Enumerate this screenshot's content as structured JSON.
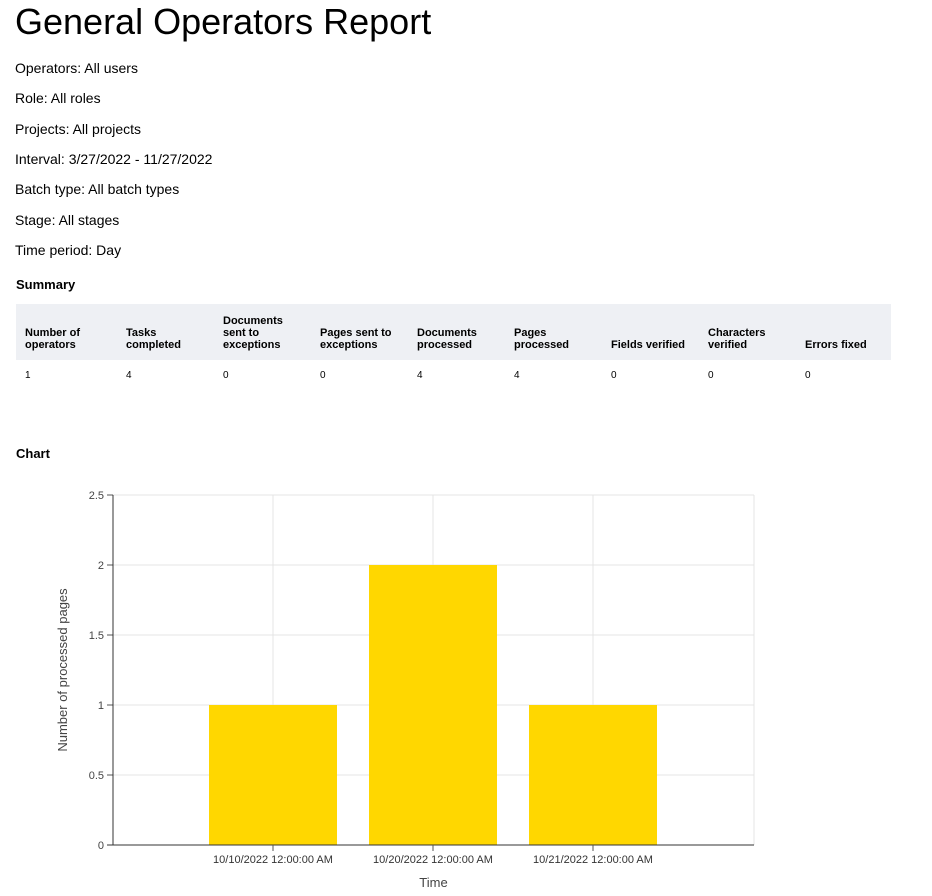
{
  "report": {
    "title": "General Operators Report",
    "filters": [
      "Operators: All users",
      "Role: All roles",
      "Projects: All projects",
      "Interval: 3/27/2022 - 11/27/2022",
      "Batch type: All batch types",
      "Stage: All stages",
      "Time period: Day"
    ]
  },
  "summary": {
    "heading": "Summary",
    "columns": [
      [
        "Number of",
        "operators"
      ],
      [
        "Tasks",
        "completed"
      ],
      [
        "Documents",
        "sent to",
        "exceptions"
      ],
      [
        "Pages sent to",
        "exceptions"
      ],
      [
        "Documents",
        "processed"
      ],
      [
        "Pages",
        "processed"
      ],
      [
        "Fields verified"
      ],
      [
        "Characters",
        "verified"
      ],
      [
        "Errors fixed"
      ]
    ],
    "row": [
      "1",
      "4",
      "0",
      "0",
      "4",
      "4",
      "0",
      "0",
      "0"
    ]
  },
  "chart": {
    "heading": "Chart"
  },
  "chart_data": {
    "type": "bar",
    "categories": [
      "10/10/2022 12:00:00 AM",
      "10/20/2022 12:00:00 AM",
      "10/21/2022 12:00:00 AM"
    ],
    "values": [
      1,
      2,
      1
    ],
    "title": "",
    "xlabel": "Time",
    "ylabel": "Number of processed pages",
    "ylim": [
      0,
      2.5
    ],
    "yticks": [
      "0",
      "0.5",
      "1",
      "1.5",
      "2",
      "2.5"
    ],
    "grid": true,
    "bar_color": "#ffd700"
  }
}
